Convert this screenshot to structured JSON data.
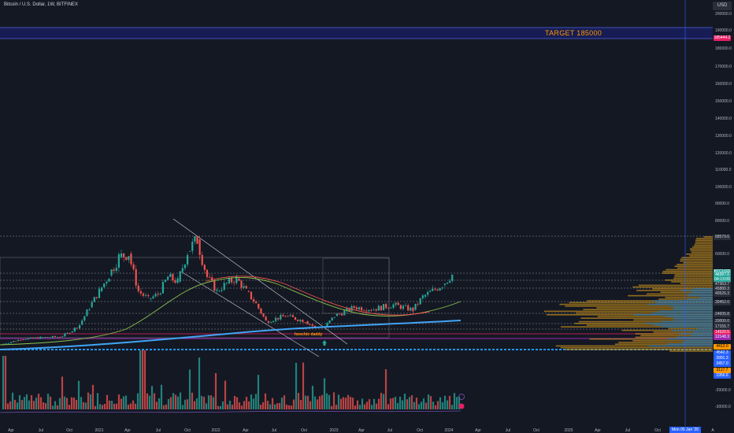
{
  "header": {
    "title": "Bitcoin / U.S. Dollar, 1W, BITFINEX",
    "currency": "USD"
  },
  "target": {
    "label": "TARGET 185000",
    "price_tag": "185444.2"
  },
  "annotations": {
    "note": "hoochie daddy"
  },
  "price_tags": [
    {
      "text": "68579.6",
      "bg": "#2a2e39",
      "fg": "#d1d4dc"
    },
    {
      "text": "BTCUSD",
      "bg": "#26a69a",
      "fg": "#ffffff"
    },
    {
      "text": "48387.0",
      "bg": "#26a69a",
      "fg": "#ffffff"
    },
    {
      "text": "04:13:09",
      "bg": "#26a69a",
      "fg": "#ffffff"
    },
    {
      "text": "47363.7",
      "bg": "#2a2e39",
      "fg": "#d1d4dc"
    },
    {
      "text": "45880.3",
      "bg": "#2a2e39",
      "fg": "#d1d4dc"
    },
    {
      "text": "40526.3",
      "bg": "#2a2e39",
      "fg": "#d1d4dc"
    },
    {
      "text": "30452.0",
      "bg": "#2a2e39",
      "fg": "#d1d4dc"
    },
    {
      "text": "24605.8",
      "bg": "#2a2e39",
      "fg": "#d1d4dc"
    },
    {
      "text": "20000.0",
      "bg": "#2a2e39",
      "fg": "#d1d4dc"
    },
    {
      "text": "17155.7",
      "bg": "#2a2e39",
      "fg": "#d1d4dc"
    },
    {
      "text": "14520.5",
      "bg": "#e91e63",
      "fg": "#ffffff"
    },
    {
      "text": "12148.3",
      "bg": "#9c27b0",
      "fg": "#ffffff"
    },
    {
      "text": "4413.0",
      "bg": "#ff9800",
      "fg": "#000000"
    },
    {
      "text": "4542.3",
      "bg": "#2962ff",
      "fg": "#ffffff"
    },
    {
      "text": "3991.3",
      "bg": "#2962ff",
      "fg": "#ffffff"
    },
    {
      "text": "3457.0",
      "bg": "#2962ff",
      "fg": "#ffffff"
    },
    {
      "text": "3117.7",
      "bg": "#ff9800",
      "fg": "#000000"
    },
    {
      "text": "1956.6",
      "bg": "#2962ff",
      "fg": "#ffffff"
    }
  ],
  "cursor_date": "Mon 05 Jan '26",
  "colors": {
    "background": "#141823",
    "bull": "#26a69a",
    "bear": "#ef5350",
    "ma_red": "#ef5350",
    "ma_green": "#8bc34a",
    "ma_blue": "#42a5f5",
    "target_line": "#3f51b5",
    "profile_orange": "#c8901a",
    "profile_blue": "#1e88e5"
  },
  "chart_data": {
    "type": "candlestick",
    "title": "Bitcoin / U.S. Dollar, 1W, BITFINEX",
    "y_axis": {
      "unit": "USD",
      "ticks": [
        "200000.0",
        "190000.0",
        "180000.0",
        "170000.0",
        "160000.0",
        "150000.0",
        "140000.0",
        "130000.0",
        "120000.0",
        "110000.0",
        "100000.0",
        "90000.0",
        "80000.0",
        "60000.0",
        "30000.0",
        "20000.0",
        "-20000.0",
        "-30000.0"
      ]
    },
    "x_axis": {
      "ticks": [
        "Apr",
        "Jul",
        "Oct",
        "2021",
        "Apr",
        "Jul",
        "Oct",
        "2022",
        "Apr",
        "Jul",
        "Oct",
        "2023",
        "Apr",
        "Jul",
        "Oct",
        "2024",
        "Apr",
        "Jul",
        "Oct",
        "2025",
        "Apr",
        "Jul",
        "Oct",
        "A"
      ]
    },
    "price_path": [
      [
        "2020-03",
        6200
      ],
      [
        "2020-05",
        9500
      ],
      [
        "2020-07",
        10500
      ],
      [
        "2020-09",
        11000
      ],
      [
        "2020-10",
        13500
      ],
      [
        "2020-11",
        18000
      ],
      [
        "2020-12",
        28000
      ],
      [
        "2021-01",
        38000
      ],
      [
        "2021-02",
        48000
      ],
      [
        "2021-03",
        58000
      ],
      [
        "2021-04",
        60000
      ],
      [
        "2021-05",
        38000
      ],
      [
        "2021-06",
        33000
      ],
      [
        "2021-07",
        36000
      ],
      [
        "2021-08",
        47000
      ],
      [
        "2021-09",
        44000
      ],
      [
        "2021-10",
        61000
      ],
      [
        "2021-11",
        67000
      ],
      [
        "2021-12",
        47000
      ],
      [
        "2022-01",
        38000
      ],
      [
        "2022-02",
        43000
      ],
      [
        "2022-03",
        46000
      ],
      [
        "2022-04",
        38000
      ],
      [
        "2022-05",
        30000
      ],
      [
        "2022-06",
        20000
      ],
      [
        "2022-08",
        23000
      ],
      [
        "2022-10",
        20000
      ],
      [
        "2022-11",
        16500
      ],
      [
        "2022-12",
        16800
      ],
      [
        "2023-01",
        23000
      ],
      [
        "2023-03",
        28000
      ],
      [
        "2023-05",
        27000
      ],
      [
        "2023-07",
        29500
      ],
      [
        "2023-09",
        26500
      ],
      [
        "2023-10",
        34500
      ],
      [
        "2023-12",
        42000
      ],
      [
        "2024-01",
        48387
      ]
    ],
    "levels": [
      185444.2,
      68579.6,
      48387.0,
      47363.7,
      45880.3,
      40526.3,
      30452.0,
      24605.8,
      20000.0,
      17155.7,
      14520.5,
      12148.3,
      4413.0
    ],
    "target": 185000,
    "volume_profile": "right side, volume-by-price bars",
    "grid": false
  }
}
